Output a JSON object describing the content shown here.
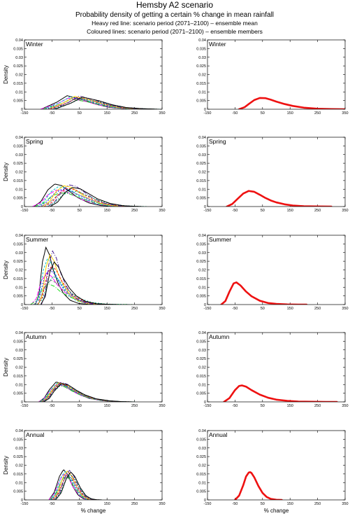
{
  "header": {
    "title": "Hemsby A2 scenario",
    "subtitle": "Probability density of getting a certain % change in mean rainfall",
    "note1": "Heavy red line: scenario period (2071–2100) – ensemble mean",
    "note2": "Coloured lines: scenario period (2071–2100) – ensemble members"
  },
  "axes_common": {
    "xlabel": "% change",
    "ylabel": "Density",
    "xlim": [
      -150,
      350
    ],
    "ylim": [
      0,
      0.04
    ],
    "xticks": [
      "-150",
      "-50",
      "50",
      "150",
      "250",
      "350"
    ],
    "xtick_values": [
      -150,
      -50,
      50,
      150,
      250,
      350
    ],
    "yticks": [
      "0",
      "0.005",
      "0.01",
      "0.015",
      "0.02",
      "0.025",
      "0.03",
      "0.035",
      "0.04"
    ],
    "ytick_values": [
      0,
      0.005,
      0.01,
      0.015,
      0.02,
      0.025,
      0.03,
      0.035,
      0.04
    ]
  },
  "colors": {
    "ensemble_mean": "#ee1111",
    "members": [
      "#000000",
      "#ff00ff",
      "#00c8c8",
      "#22dd22",
      "#1a1aff",
      "#ffd000",
      "#888888",
      "#ee1111",
      "#4b2090",
      "#00a070"
    ]
  },
  "chart_data": [
    {
      "type": "line",
      "title": "Winter",
      "panel": "ensemble members",
      "peak": {
        "x": [
          5,
          60
        ],
        "y": [
          0.0058,
          0.0078
        ]
      },
      "curve": {
        "x": [
          -60,
          0,
          40,
          100,
          150,
          200,
          250,
          300,
          320
        ],
        "y": [
          0,
          0.0035,
          0.0068,
          0.0048,
          0.0025,
          0.001,
          0.0004,
          0.0001,
          0
        ]
      }
    },
    {
      "type": "line",
      "title": "Winter",
      "panel": "ensemble mean",
      "series": [
        {
          "x": [
            -35,
            -15,
            0,
            20,
            40,
            60,
            80,
            100,
            130,
            160,
            200,
            250,
            300,
            350
          ],
          "y": [
            0,
            0.0012,
            0.003,
            0.0053,
            0.0065,
            0.0064,
            0.0055,
            0.0044,
            0.003,
            0.0019,
            0.0009,
            0.0003,
            0.0001,
            0
          ]
        }
      ]
    },
    {
      "type": "line",
      "title": "Spring",
      "panel": "ensemble members",
      "peak": {
        "x": [
          -40,
          25
        ],
        "y": [
          0.008,
          0.013
        ]
      },
      "curve": {
        "x": [
          -90,
          -60,
          -30,
          0,
          30,
          60,
          100,
          150,
          200,
          250,
          280
        ],
        "y": [
          0,
          0.002,
          0.0065,
          0.0088,
          0.0082,
          0.0062,
          0.0035,
          0.0014,
          0.0004,
          0.0001,
          0
        ]
      }
    },
    {
      "type": "line",
      "title": "Spring",
      "panel": "ensemble mean",
      "series": [
        {
          "x": [
            -80,
            -60,
            -40,
            -20,
            0,
            20,
            40,
            60,
            80,
            100,
            130,
            160,
            200,
            240,
            300
          ],
          "y": [
            0,
            0.0015,
            0.0045,
            0.0075,
            0.009,
            0.0085,
            0.0068,
            0.005,
            0.0035,
            0.0024,
            0.0013,
            0.0006,
            0.0002,
            0.0001,
            0
          ]
        }
      ]
    },
    {
      "type": "line",
      "title": "Summer",
      "panel": "ensemble members",
      "peak": {
        "x": [
          -72,
          -42
        ],
        "y": [
          0.012,
          0.033
        ]
      },
      "curve": {
        "x": [
          -100,
          -80,
          -60,
          -40,
          -20,
          0,
          30,
          60,
          100,
          150,
          200,
          240
        ],
        "y": [
          0,
          0.003,
          0.012,
          0.016,
          0.014,
          0.01,
          0.006,
          0.0032,
          0.0012,
          0.0003,
          0.0001,
          0
        ]
      }
    },
    {
      "type": "line",
      "title": "Summer",
      "panel": "ensemble mean",
      "series": [
        {
          "x": [
            -100,
            -85,
            -70,
            -55,
            -45,
            -30,
            -10,
            10,
            40,
            70,
            100,
            140,
            180,
            210
          ],
          "y": [
            0,
            0.002,
            0.0075,
            0.0122,
            0.0128,
            0.011,
            0.0075,
            0.0048,
            0.0022,
            0.0009,
            0.0004,
            0.0001,
            0,
            0
          ]
        }
      ]
    },
    {
      "type": "line",
      "title": "Autumn",
      "panel": "ensemble members",
      "peak": {
        "x": [
          -35,
          -15
        ],
        "y": [
          0.0095,
          0.0115
        ]
      },
      "curve": {
        "x": [
          -90,
          -70,
          -50,
          -25,
          0,
          30,
          60,
          100,
          150,
          200,
          240
        ],
        "y": [
          0,
          0.002,
          0.0065,
          0.0105,
          0.0095,
          0.0065,
          0.004,
          0.0018,
          0.0006,
          0.0001,
          0
        ]
      }
    },
    {
      "type": "line",
      "title": "Autumn",
      "panel": "ensemble mean",
      "series": [
        {
          "x": [
            -90,
            -70,
            -50,
            -35,
            -25,
            -10,
            10,
            40,
            70,
            100,
            140,
            180,
            230,
            280,
            320
          ],
          "y": [
            0,
            0.0022,
            0.0068,
            0.0092,
            0.0095,
            0.0088,
            0.0068,
            0.0042,
            0.0024,
            0.0013,
            0.0006,
            0.0002,
            0.0001,
            0,
            0
          ]
        }
      ]
    },
    {
      "type": "line",
      "title": "Annual",
      "panel": "ensemble members",
      "peak": {
        "x": [
          -8,
          18
        ],
        "y": [
          0.014,
          0.0175
        ]
      },
      "curve": {
        "x": [
          -50,
          -30,
          -10,
          5,
          20,
          40,
          60,
          80,
          100,
          120
        ],
        "y": [
          0,
          0.004,
          0.0125,
          0.016,
          0.0135,
          0.007,
          0.0025,
          0.0006,
          0.0001,
          0
        ]
      }
    },
    {
      "type": "line",
      "title": "Annual",
      "panel": "ensemble mean",
      "series": [
        {
          "x": [
            -50,
            -35,
            -20,
            -10,
            0,
            5,
            10,
            20,
            35,
            50,
            65,
            80,
            100,
            120
          ],
          "y": [
            0,
            0.0025,
            0.0085,
            0.0135,
            0.0158,
            0.016,
            0.0155,
            0.013,
            0.008,
            0.004,
            0.0017,
            0.0006,
            0.0001,
            0
          ]
        }
      ]
    }
  ]
}
